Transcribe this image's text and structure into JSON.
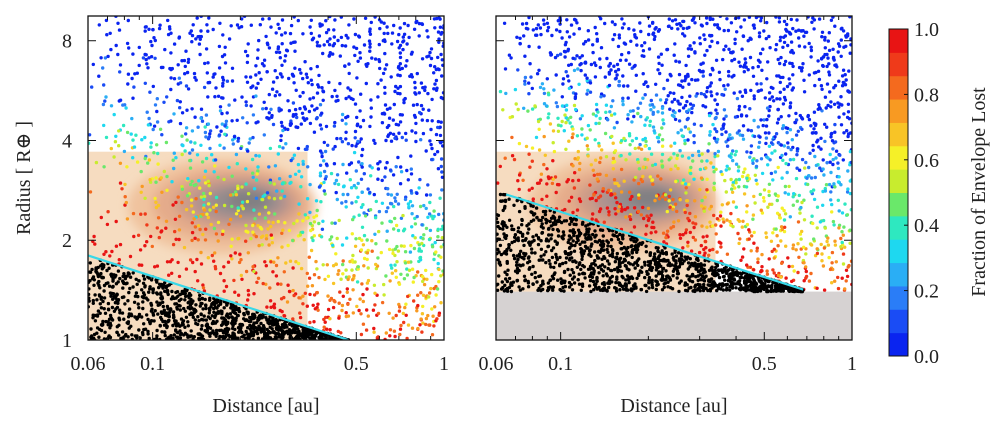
{
  "chart_data": [
    {
      "type": "scatter",
      "panel": "left",
      "xlabel": "Distance  [au]",
      "ylabel": "Radius  [ R⊕ ]",
      "xscale": "log",
      "yscale": "log",
      "xlim": [
        0.06,
        1.0
      ],
      "ylim": [
        1.0,
        9.5
      ],
      "xticks": [
        {
          "value": 0.06,
          "label": "0.06"
        },
        {
          "value": 0.1,
          "label": "0.1"
        },
        {
          "value": 0.5,
          "label": "0.5"
        },
        {
          "value": 1.0,
          "label": "1"
        }
      ],
      "yticks": [
        {
          "value": 1,
          "label": "1"
        },
        {
          "value": 2,
          "label": "2"
        },
        {
          "value": 4,
          "label": "4"
        },
        {
          "value": 8,
          "label": "8"
        }
      ],
      "boundary_line": {
        "color": "#38d8e8",
        "points": [
          [
            0.06,
            1.8
          ],
          [
            0.47,
            1.0
          ]
        ]
      },
      "observed_density_region": {
        "x": [
          0.06,
          0.34
        ],
        "y": [
          1.0,
          3.7
        ]
      },
      "density_peak": {
        "x": 0.2,
        "y": 2.6
      },
      "grid": false
    },
    {
      "type": "scatter",
      "panel": "right",
      "xlabel": "Distance  [au]",
      "xscale": "log",
      "yscale": "log",
      "xlim": [
        0.06,
        1.0
      ],
      "ylim": [
        1.0,
        9.5
      ],
      "xticks": [
        {
          "value": 0.06,
          "label": "0.06"
        },
        {
          "value": 0.1,
          "label": "0.1"
        },
        {
          "value": 0.5,
          "label": "0.5"
        },
        {
          "value": 1.0,
          "label": "1"
        }
      ],
      "boundary_line": {
        "color": "#38d8e8",
        "points": [
          [
            0.065,
            2.75
          ],
          [
            0.68,
            1.42
          ]
        ]
      },
      "excluded_region": {
        "y_max": 1.4,
        "color": "#d6d2d2"
      },
      "observed_density_region": {
        "x": [
          0.06,
          0.34
        ],
        "y": [
          1.4,
          3.7
        ]
      },
      "density_peak": {
        "x": 0.19,
        "y": 2.65
      },
      "grid": false
    }
  ],
  "colorbar": {
    "label": "Fraction of Envelope Lost",
    "min": 0.0,
    "max": 1.0,
    "ticks": [
      {
        "value": 0.0,
        "label": "0.0"
      },
      {
        "value": 0.2,
        "label": "0.2"
      },
      {
        "value": 0.4,
        "label": "0.4"
      },
      {
        "value": 0.6,
        "label": "0.6"
      },
      {
        "value": 0.8,
        "label": "0.8"
      },
      {
        "value": 1.0,
        "label": "1.0"
      }
    ],
    "colors": [
      "#0a24f0",
      "#1a4cf5",
      "#2a7df7",
      "#2aaef5",
      "#1ed8f0",
      "#2ee8c0",
      "#6ae86a",
      "#c8ec2e",
      "#f5f028",
      "#f8c426",
      "#f89a22",
      "#f46a1e",
      "#ef3a1a",
      "#e81414"
    ],
    "stripe_count": 14
  }
}
